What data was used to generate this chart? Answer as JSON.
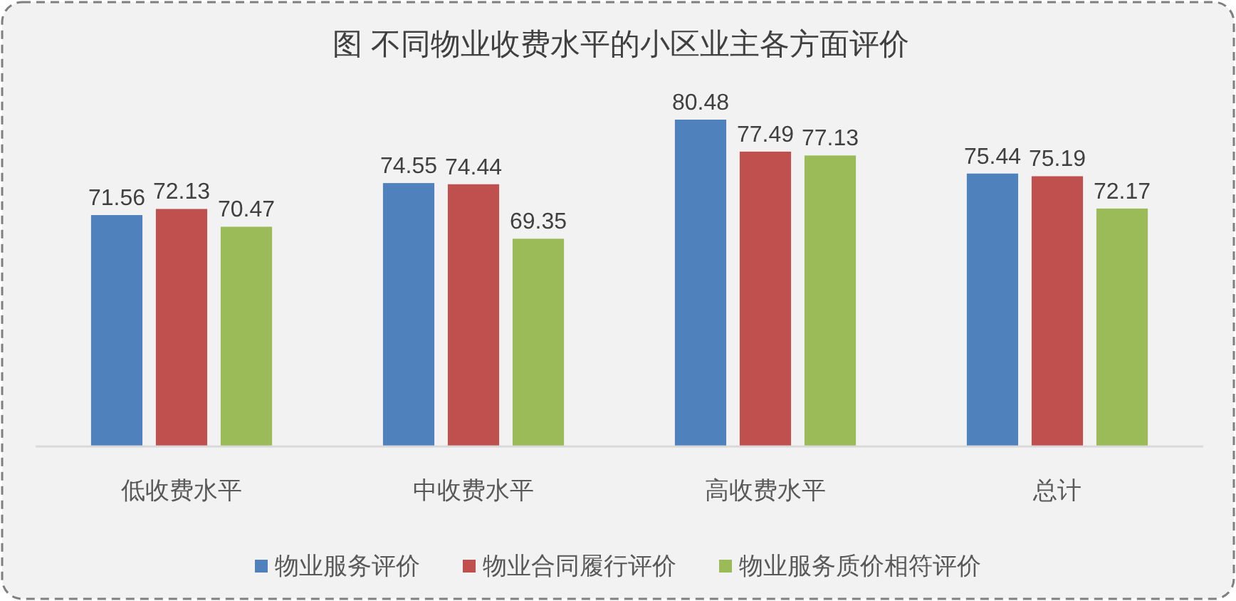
{
  "chart_data": {
    "type": "bar",
    "title": "图 不同物业收费水平的小区业主各方面评价",
    "categories": [
      "低收费水平",
      "中收费水平",
      "高收费水平",
      "总计"
    ],
    "series": [
      {
        "name": "物业服务评价",
        "color": "#4f81bd",
        "values": [
          71.56,
          74.55,
          80.48,
          75.44
        ]
      },
      {
        "name": "物业合同履行评价",
        "color": "#c0504d",
        "values": [
          72.13,
          74.44,
          77.49,
          75.19
        ]
      },
      {
        "name": "物业服务质价相符评价",
        "color": "#9bbb59",
        "values": [
          70.47,
          69.35,
          77.13,
          72.17
        ]
      }
    ],
    "ylim": [
      50,
      80.48
    ],
    "tick_labels": "x",
    "data_labels": true,
    "legend": "bottom"
  }
}
